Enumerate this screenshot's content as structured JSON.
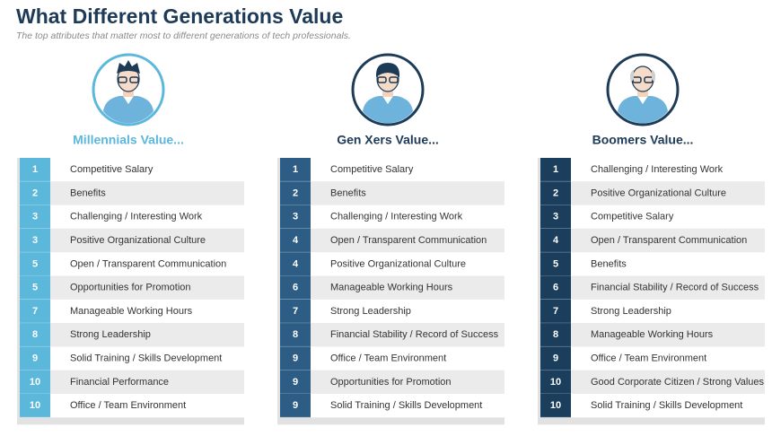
{
  "header": {
    "title": "What Different Generations Value",
    "subtitle": "The top attributes that matter most to different generations of tech professionals."
  },
  "columns": [
    {
      "heading": "Millennials Value...",
      "rows": [
        {
          "rank": 1,
          "label": "Competitive Salary"
        },
        {
          "rank": 2,
          "label": "Benefits"
        },
        {
          "rank": 3,
          "label": "Challenging / Interesting Work"
        },
        {
          "rank": 3,
          "label": "Positive Organizational Culture"
        },
        {
          "rank": 5,
          "label": "Open / Transparent Communication"
        },
        {
          "rank": 5,
          "label": "Opportunities for Promotion"
        },
        {
          "rank": 7,
          "label": "Manageable Working Hours"
        },
        {
          "rank": 8,
          "label": "Strong Leadership"
        },
        {
          "rank": 9,
          "label": "Solid Training / Skills Development"
        },
        {
          "rank": 10,
          "label": "Financial Performance"
        },
        {
          "rank": 10,
          "label": "Office / Team Environment"
        }
      ]
    },
    {
      "heading": "Gen Xers Value...",
      "rows": [
        {
          "rank": 1,
          "label": "Competitive Salary"
        },
        {
          "rank": 2,
          "label": "Benefits"
        },
        {
          "rank": 3,
          "label": "Challenging / Interesting Work"
        },
        {
          "rank": 4,
          "label": "Open / Transparent Communication"
        },
        {
          "rank": 4,
          "label": "Positive Organizational Culture"
        },
        {
          "rank": 6,
          "label": "Manageable Working Hours"
        },
        {
          "rank": 7,
          "label": "Strong Leadership"
        },
        {
          "rank": 8,
          "label": "Financial Stability / Record of Success"
        },
        {
          "rank": 9,
          "label": "Office / Team Environment"
        },
        {
          "rank": 9,
          "label": "Opportunities for Promotion"
        },
        {
          "rank": 9,
          "label": "Solid Training / Skills Development"
        }
      ]
    },
    {
      "heading": "Boomers Value...",
      "rows": [
        {
          "rank": 1,
          "label": "Challenging / Interesting Work"
        },
        {
          "rank": 2,
          "label": "Positive Organizational Culture"
        },
        {
          "rank": 3,
          "label": "Competitive Salary"
        },
        {
          "rank": 4,
          "label": "Open / Transparent Communication"
        },
        {
          "rank": 5,
          "label": "Benefits"
        },
        {
          "rank": 6,
          "label": "Financial Stability / Record of Success"
        },
        {
          "rank": 7,
          "label": "Strong Leadership"
        },
        {
          "rank": 8,
          "label": "Manageable Working Hours"
        },
        {
          "rank": 9,
          "label": "Office / Team Environment"
        },
        {
          "rank": 10,
          "label": "Good Corporate Citizen / Strong Values"
        },
        {
          "rank": 10,
          "label": "Solid Training / Skills Development"
        }
      ]
    }
  ]
}
